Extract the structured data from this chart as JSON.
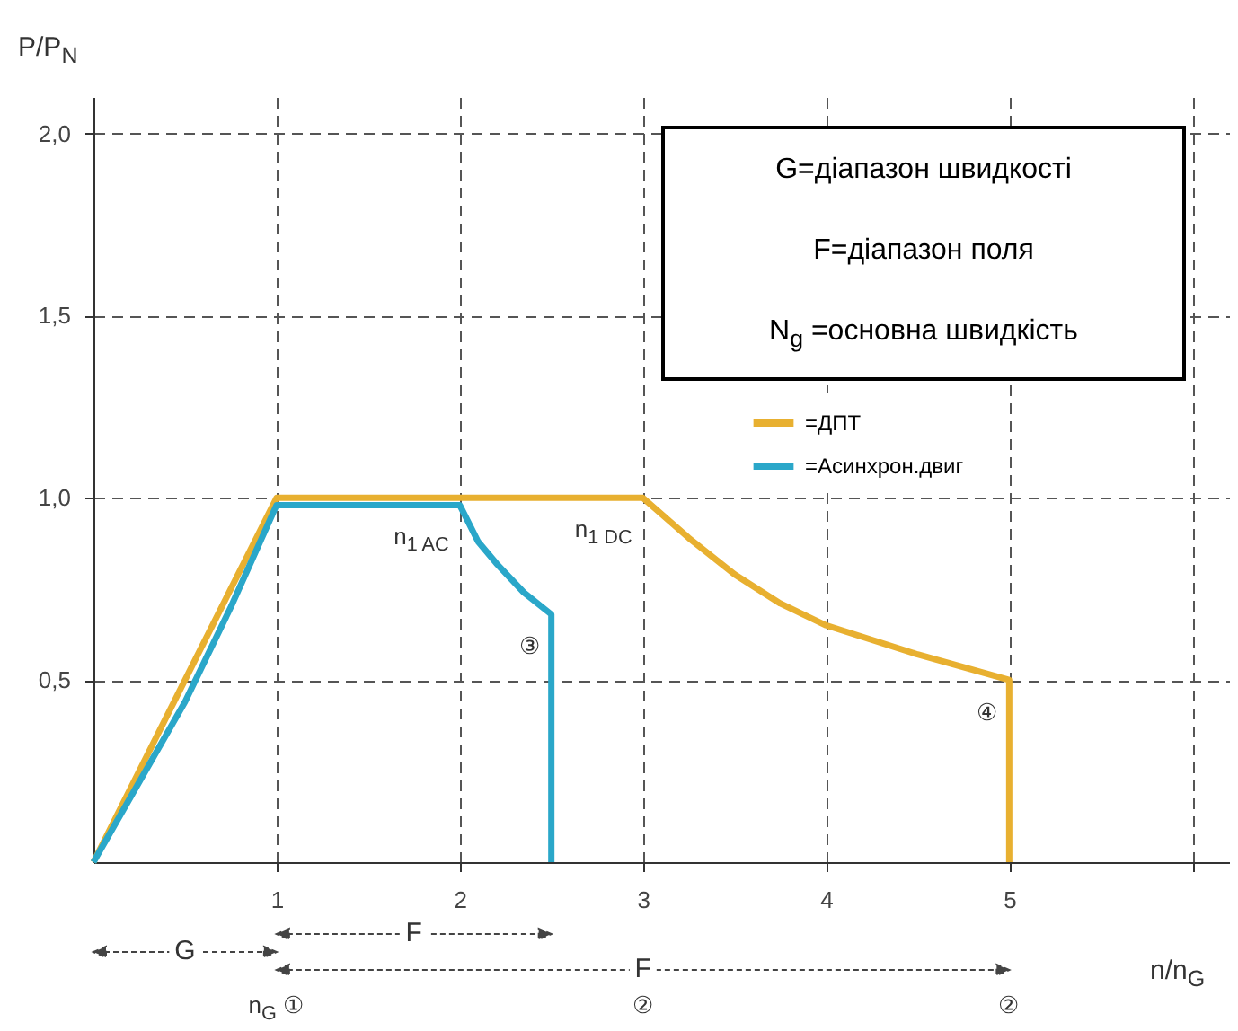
{
  "chart_data": {
    "type": "line",
    "ylabel": "P/P$_{N}$",
    "xlabel": "n/n$_{G}$",
    "xlim": [
      0,
      6.2
    ],
    "xticks": [
      1,
      2,
      3,
      4,
      5,
      {
        "value": 6,
        "label": null
      }
    ],
    "ylim": [
      0,
      2.1
    ],
    "yticks": [
      {
        "value": 0.5,
        "label": "0,5"
      },
      {
        "value": 1,
        "label": "1,0"
      },
      {
        "value": 1.5,
        "label": "1,5"
      },
      {
        "value": 2,
        "label": "2,0"
      }
    ],
    "grid": true,
    "legend": "top right",
    "line_style": "solid",
    "marker": "none",
    "series": [
      {
        "name": "=ДПТ",
        "color": "#e8b030",
        "x": [
          0,
          1,
          3,
          3.25,
          3.5,
          3.75,
          4,
          4.5,
          5,
          5
        ],
        "values": [
          0,
          1,
          1,
          0.89,
          0.79,
          0.71,
          0.65,
          0.57,
          0.5,
          0
        ]
      },
      {
        "name": "=Асинхрон.двиг",
        "color": "#2aa7c9",
        "x": [
          0,
          0.25,
          0.5,
          0.75,
          1,
          2,
          2.1,
          2.2,
          2.35,
          2.5,
          2.5
        ],
        "values": [
          0,
          0.22,
          0.44,
          0.7,
          0.98,
          0.98,
          0.88,
          0.82,
          0.74,
          0.68,
          0
        ]
      }
    ],
    "annotations": [
      "G=діапазон швидкості",
      "F=діапазон поля",
      "N$_{g}$ =основна швидкість",
      {
        "text": "n$_{1 AC}$",
        "x": 2,
        "y": 0.98
      },
      {
        "text": "n$_{1 DC}$",
        "x": 3,
        "y": 1
      },
      {
        "text": "③",
        "x": 2.5,
        "y": 0.68
      },
      {
        "text": "④",
        "x": 5,
        "y": 0.5
      },
      "G",
      "F",
      "F",
      "n$_{G}$ ①",
      "②",
      "②"
    ]
  }
}
